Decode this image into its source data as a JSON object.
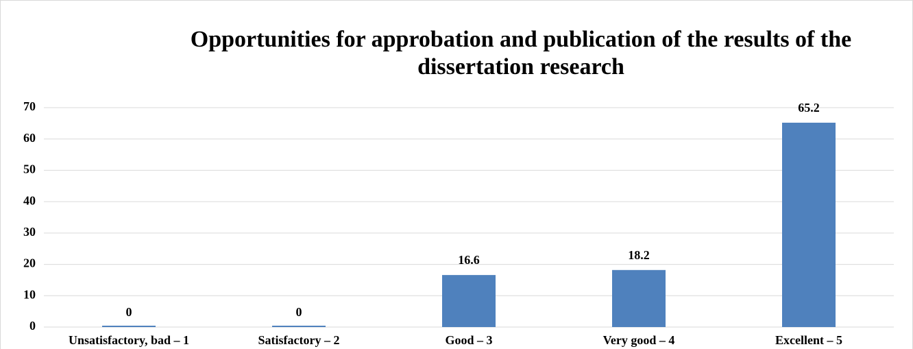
{
  "chart_data": {
    "type": "bar",
    "title": "Opportunities for approbation and publication of the results of the dissertation research",
    "categories": [
      "Unsatisfactory, bad – 1",
      "Satisfactory – 2",
      "Good – 3",
      "Very good – 4",
      "Excellent – 5"
    ],
    "values": [
      0,
      0,
      16.6,
      18.2,
      65.2
    ],
    "color": "#4f81bd",
    "ylim": [
      0,
      70
    ],
    "yticks": [
      0,
      10,
      20,
      30,
      40,
      50,
      60,
      70
    ],
    "grid": true
  }
}
